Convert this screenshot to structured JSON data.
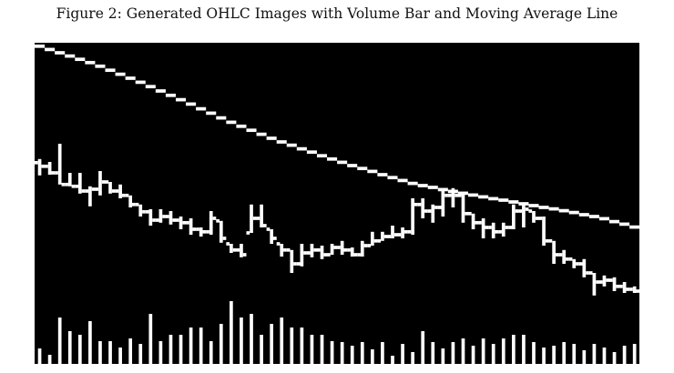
{
  "caption": "Figure 2: Generated OHLC Images with Volume Bar and Moving Average Line",
  "colors": {
    "background": "#000000",
    "marks": "#ffffff"
  },
  "chart_data": {
    "type": "ohlc",
    "title": "",
    "days": 60,
    "axes_visible": false,
    "grid": false,
    "high": [
      56.3,
      55.5,
      60.5,
      52.5,
      52.5,
      48.8,
      53,
      50,
      49.3,
      46.3,
      43.8,
      42.5,
      42.5,
      42,
      40.5,
      40,
      37.5,
      42,
      39.3,
      33,
      33,
      43.8,
      43.8,
      37,
      33,
      31.3,
      33,
      33,
      32.5,
      33,
      33.8,
      32,
      33.8,
      36.3,
      36.3,
      38,
      37.5,
      45.5,
      45.5,
      43.8,
      47.5,
      48.3,
      47,
      41.3,
      40,
      38.8,
      38.8,
      43.8,
      43.8,
      42,
      40.5,
      33.8,
      31.3,
      28.8,
      28.8,
      25,
      24.3,
      23.8,
      22.5,
      21.3
    ],
    "low": [
      51.8,
      52,
      49.3,
      48.8,
      46.8,
      43.3,
      46.3,
      46.8,
      45.5,
      43,
      40.5,
      38,
      38.8,
      38.3,
      37,
      35.5,
      35,
      35.5,
      33.3,
      30.5,
      29.3,
      36,
      37.5,
      33,
      29.5,
      25,
      26.8,
      29.3,
      28.8,
      30,
      30,
      29.5,
      29.5,
      32.5,
      33.8,
      34.5,
      34.5,
      35.5,
      40,
      38.8,
      40.5,
      43,
      38.8,
      37,
      34.5,
      34.5,
      35,
      37,
      37.5,
      38.8,
      32.5,
      27.5,
      27.5,
      26.3,
      23.8,
      18.8,
      21.3,
      20,
      19.5,
      19.5
    ],
    "close": [
      54.3,
      52.5,
      49.3,
      48.8,
      47.5,
      48,
      50,
      47.5,
      46.3,
      43.8,
      41.8,
      39.5,
      40.5,
      39.5,
      38.8,
      37,
      36.3,
      40,
      34.5,
      31.3,
      30,
      40,
      38,
      34.5,
      31.3,
      27.5,
      30.5,
      31.3,
      30,
      32,
      31.3,
      30,
      32.5,
      33.8,
      35,
      35.5,
      36.3,
      43.8,
      42,
      43,
      46.3,
      46.3,
      41.3,
      38.8,
      37.5,
      36.3,
      37.5,
      42,
      42.5,
      40,
      33.8,
      30,
      28.8,
      27.5,
      25,
      22.5,
      23,
      21.3,
      20.5,
      20
    ],
    "moving_average": [
      87.3,
      86.4,
      85.5,
      84.6,
      83.7,
      82.8,
      81.8,
      80.7,
      79.6,
      78.5,
      77.4,
      76.2,
      75,
      73.8,
      72.6,
      71.4,
      70.1,
      68.9,
      67.6,
      66.4,
      65.3,
      64.2,
      63.1,
      62,
      61,
      60.1,
      59.1,
      58.2,
      57.2,
      56.3,
      55.4,
      54.5,
      53.7,
      52.9,
      52,
      51.2,
      50.4,
      49.6,
      49,
      48.5,
      47.9,
      47.4,
      46.9,
      46.4,
      45.9,
      45.4,
      45,
      44.5,
      44,
      43.5,
      43,
      42.6,
      42.1,
      41.6,
      41,
      40.5,
      39.9,
      39.1,
      38.4,
      37.6
    ],
    "volume": [
      17,
      10,
      51,
      36,
      32,
      47,
      25,
      25,
      18,
      28,
      22,
      55,
      25,
      32,
      32,
      40,
      40,
      25,
      44,
      69,
      51,
      55,
      32,
      44,
      51,
      40,
      40,
      32,
      32,
      25,
      24,
      20,
      24,
      16,
      24,
      9,
      22,
      13,
      36,
      24,
      17,
      24,
      28,
      20,
      28,
      22,
      28,
      32,
      32,
      24,
      18,
      20,
      24,
      22,
      15,
      22,
      18,
      13,
      20,
      22
    ],
    "price_ylim": [
      0,
      88.25
    ],
    "volume_ylim": [
      0,
      100
    ]
  }
}
